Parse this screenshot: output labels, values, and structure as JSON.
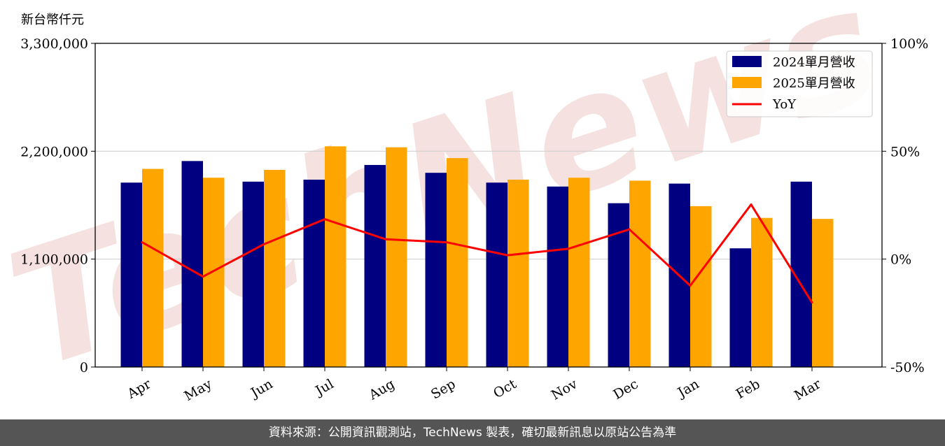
{
  "unit_label": "新台幣仟元",
  "footer": "資料來源：公開資訊觀測站，TechNews 製表，確切最新訊息以原站公告為準",
  "watermark": "TechNews",
  "chart_data": {
    "type": "bar",
    "categories": [
      "Apr",
      "May",
      "Jun",
      "Jul",
      "Aug",
      "Sep",
      "Oct",
      "Nov",
      "Dec",
      "Jan",
      "Feb",
      "Mar"
    ],
    "series": [
      {
        "name": "2024單月營收",
        "kind": "bar",
        "axis": "left",
        "color": "#000080",
        "values": [
          1880000,
          2100000,
          1890000,
          1910000,
          2060000,
          1980000,
          1880000,
          1840000,
          1670000,
          1870000,
          1210000,
          1890000
        ]
      },
      {
        "name": "2025單月營收",
        "kind": "bar",
        "axis": "left",
        "color": "#FFA500",
        "values": [
          2020000,
          1930000,
          2010000,
          2250000,
          2240000,
          2130000,
          1910000,
          1930000,
          1900000,
          1640000,
          1520000,
          1510000
        ]
      },
      {
        "name": "YoY",
        "kind": "line",
        "axis": "right",
        "color": "#FF0000",
        "values": [
          7.8,
          -8.1,
          6.9,
          18.5,
          9.2,
          7.8,
          1.8,
          4.8,
          13.8,
          -12.3,
          25.3,
          -20.1
        ]
      }
    ],
    "y_left": {
      "label": "新台幣仟元",
      "ylim": [
        0,
        3300000
      ],
      "ticks": [
        0,
        1100000,
        2200000,
        3300000
      ],
      "tick_labels": [
        "0",
        "1,100,000",
        "2,200,000",
        "3,300,000"
      ]
    },
    "y_right": {
      "ylim": [
        -50,
        100
      ],
      "ticks": [
        -50,
        0,
        50,
        100
      ],
      "tick_labels": [
        "-50%",
        "0%",
        "50%",
        "100%"
      ]
    },
    "grid": "horizontal",
    "legend": "top-right"
  }
}
